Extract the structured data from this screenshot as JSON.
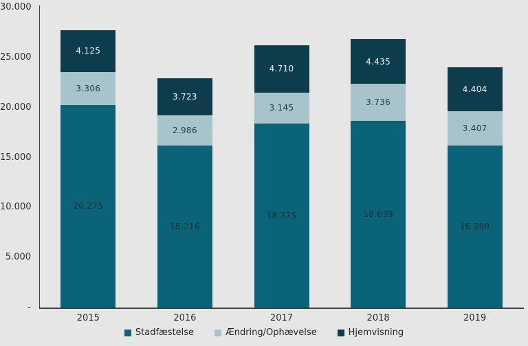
{
  "chart_data": {
    "type": "bar",
    "stacked": true,
    "title": "",
    "xlabel": "",
    "ylabel": "",
    "grid": false,
    "legend_position": "bottom",
    "categories": [
      "2015",
      "2016",
      "2017",
      "2018",
      "2019"
    ],
    "series": [
      {
        "name": "Stadfæstelse",
        "color": "#0a6376",
        "label_color": "#122f39",
        "values": [
          20275,
          16216,
          18375,
          18639,
          16209
        ]
      },
      {
        "name": "Ændring/Ophævelse",
        "color": "#a6c4ca",
        "label_color": "#2b3c43",
        "values": [
          3306,
          2986,
          3145,
          3736,
          3407
        ]
      },
      {
        "name": "Hjemvisning",
        "color": "#0d3d4c",
        "label_color": "#eef4f5",
        "values": [
          4125,
          3723,
          4710,
          4435,
          4404
        ]
      }
    ],
    "ylim": [
      0,
      30000
    ],
    "ytick_step": 5000,
    "ytick_labels": [
      "-",
      "5.000",
      "10.000",
      "15.000",
      "20.000",
      "25.000",
      "30.000"
    ],
    "number_format": "thousands-dot"
  },
  "colors": {
    "background": "#e6e6e6",
    "axis": "#3f3f3f",
    "tick_text": "#2b2b2b",
    "legend_text": "#262626"
  }
}
